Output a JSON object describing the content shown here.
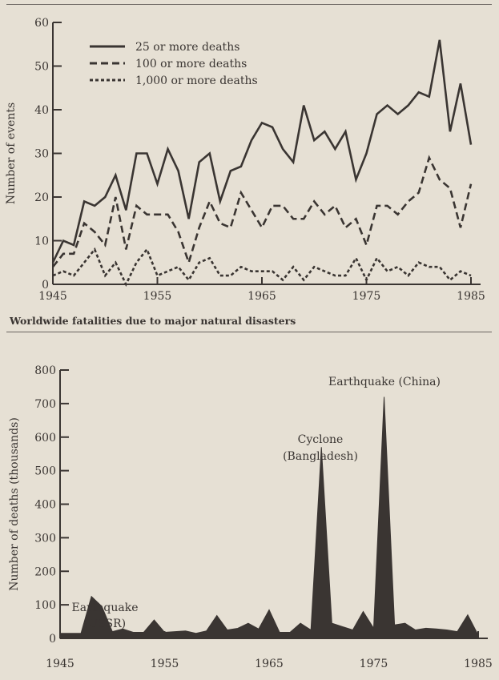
{
  "chart_data": [
    {
      "type": "line",
      "title": "",
      "xlabel": "",
      "ylabel": "Number of events",
      "xlim": [
        1945,
        1985
      ],
      "ylim": [
        0,
        60
      ],
      "xticks": [
        1945,
        1955,
        1965,
        1975,
        1985
      ],
      "yticks": [
        0,
        10,
        20,
        30,
        40,
        50,
        60
      ],
      "grid": false,
      "legend_position": "top-left",
      "x": [
        1945,
        1946,
        1947,
        1948,
        1949,
        1950,
        1951,
        1952,
        1953,
        1954,
        1955,
        1956,
        1957,
        1958,
        1959,
        1960,
        1961,
        1962,
        1963,
        1964,
        1965,
        1966,
        1967,
        1968,
        1969,
        1970,
        1971,
        1972,
        1973,
        1974,
        1975,
        1976,
        1977,
        1978,
        1979,
        1980,
        1981,
        1982,
        1983,
        1984,
        1985
      ],
      "series": [
        {
          "name": "25 or more deaths",
          "style": "solid",
          "values": [
            5,
            10,
            9,
            19,
            18,
            20,
            25,
            17,
            30,
            30,
            23,
            31,
            26,
            15,
            28,
            30,
            19,
            26,
            27,
            33,
            37,
            36,
            31,
            28,
            41,
            33,
            35,
            31,
            35,
            24,
            30,
            39,
            41,
            39,
            41,
            44,
            43,
            56,
            35,
            46,
            32
          ]
        },
        {
          "name": "100 or more deaths",
          "style": "dashed",
          "values": [
            4,
            7,
            7,
            14,
            12,
            9,
            20,
            8,
            18,
            16,
            16,
            16,
            12,
            5,
            13,
            19,
            14,
            13,
            21,
            17,
            13,
            18,
            18,
            15,
            15,
            19,
            16,
            18,
            13,
            15,
            9,
            18,
            18,
            16,
            19,
            21,
            29,
            24,
            22,
            13,
            23
          ]
        },
        {
          "name": "1,000 or more deaths",
          "style": "dotted",
          "values": [
            2,
            3,
            2,
            5,
            8,
            2,
            5,
            0,
            5,
            8,
            2,
            3,
            4,
            1,
            5,
            6,
            2,
            2,
            4,
            3,
            3,
            3,
            1,
            4,
            1,
            4,
            3,
            2,
            2,
            6,
            1,
            6,
            3,
            4,
            2,
            5,
            4,
            4,
            1,
            3,
            2
          ]
        }
      ]
    },
    {
      "type": "area",
      "title": "Worldwide fatalities due to major natural disasters",
      "xlabel": "",
      "ylabel": "Number of deaths (thousands)",
      "xlim": [
        1945,
        1985
      ],
      "ylim": [
        0,
        800
      ],
      "xticks": [
        1945,
        1955,
        1965,
        1975,
        1985
      ],
      "yticks": [
        0,
        100,
        200,
        300,
        400,
        500,
        600,
        700,
        800
      ],
      "grid": false,
      "x": [
        1945,
        1946,
        1947,
        1948,
        1949,
        1950,
        1951,
        1952,
        1953,
        1954,
        1955,
        1956,
        1957,
        1958,
        1959,
        1960,
        1961,
        1962,
        1963,
        1964,
        1965,
        1966,
        1967,
        1968,
        1969,
        1970,
        1971,
        1972,
        1973,
        1974,
        1975,
        1976,
        1977,
        1978,
        1979,
        1980,
        1981,
        1982,
        1983,
        1984,
        1985
      ],
      "values": [
        15,
        15,
        15,
        125,
        95,
        20,
        28,
        18,
        18,
        55,
        18,
        20,
        22,
        15,
        22,
        68,
        25,
        30,
        45,
        28,
        85,
        18,
        18,
        45,
        25,
        570,
        45,
        35,
        25,
        80,
        30,
        720,
        40,
        45,
        25,
        30,
        28,
        25,
        20,
        70,
        10
      ],
      "annotations": [
        {
          "text": [
            "Earthquake",
            "(USSR)"
          ],
          "x": 1948
        },
        {
          "text": [
            "Cyclone",
            "(Bangladesh)"
          ],
          "x": 1970
        },
        {
          "text": [
            "Earthquake (China)"
          ],
          "x": 1976
        }
      ]
    }
  ],
  "colors": {
    "ink": "#3a3532",
    "paper": "#e6e0d4"
  }
}
